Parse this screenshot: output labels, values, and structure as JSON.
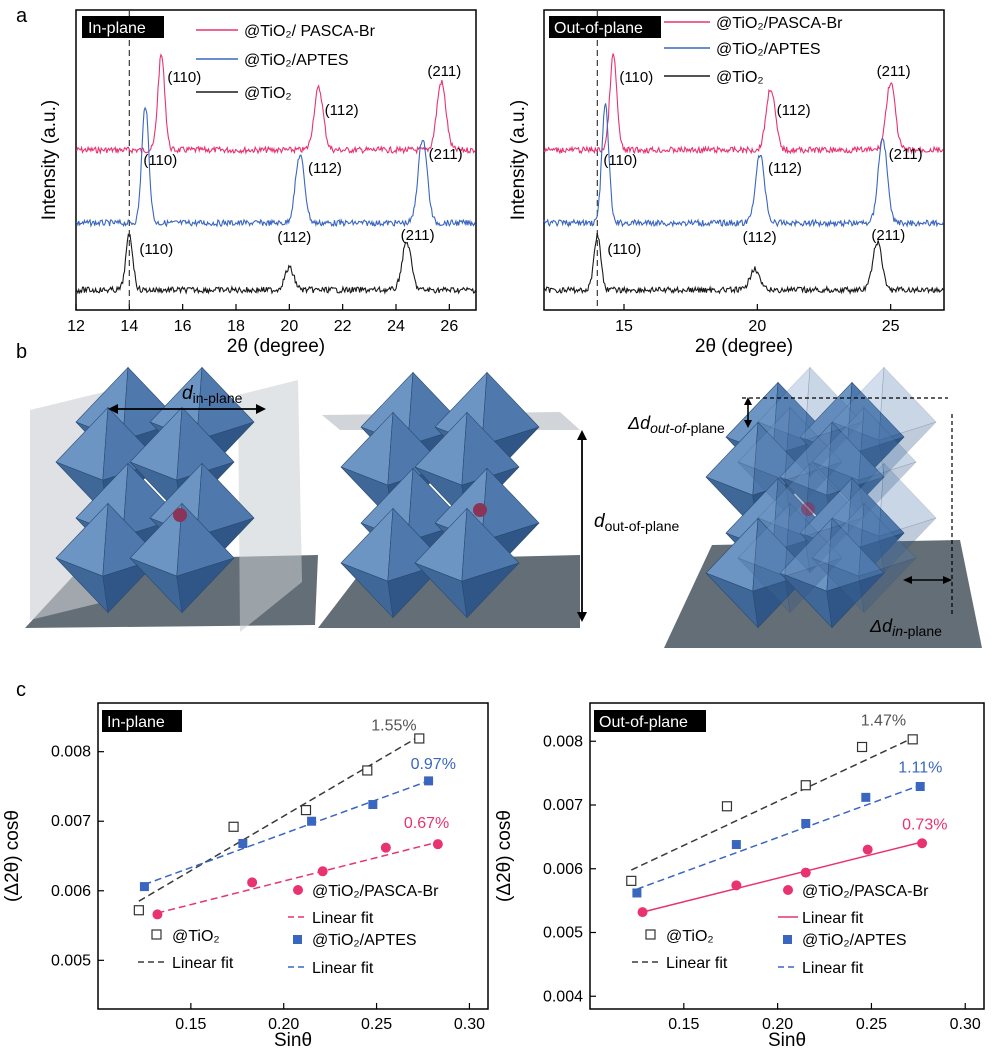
{
  "panel_labels": {
    "a": "a",
    "b": "b",
    "c": "c"
  },
  "colors": {
    "pink": "#e8336f",
    "blue": "#3a66c0",
    "black": "#1a1a1a",
    "dash_gray": "#3a3a3a",
    "octa": "#4a76a8",
    "pane": "#c9cdd2",
    "floor": "#5c6670"
  },
  "xrd_xlabel": "2θ (degree)",
  "xrd_ylabel": "Intensity (a.u.)",
  "legend_xrd": {
    "pink": "@TiO₂/ PASCA-Br",
    "blue": "@TiO₂/APTES",
    "black": "@TiO₂",
    "pink_right": "@TiO₂/PASCA-Br"
  },
  "struct_labels": {
    "d_in": "d",
    "d_in_sub": "in-plane",
    "d_out": "d",
    "d_out_sub": "out-of-plane",
    "dd_out": "Δd",
    "dd_out_sub": "out-of-",
    "dd_out_sub2": "plane",
    "dd_in": "Δd",
    "dd_in_sub": "in-",
    "dd_in_sub2": "plane"
  },
  "chart_data": [
    {
      "type": "line",
      "panel": "a-left",
      "tag": "In-plane",
      "xlabel": "2θ (degree)",
      "ylabel": "Intensity (a.u.)",
      "xlim": [
        12,
        27
      ],
      "xticks": [
        "12",
        "14",
        "16",
        "18",
        "20",
        "22",
        "24",
        "26"
      ],
      "reference_line_x": 14.0,
      "series": [
        {
          "name": "@TiO₂/ PASCA-Br",
          "color": "pink",
          "peaks": [
            {
              "x": 15.2,
              "label": "(110)"
            },
            {
              "x": 21.1,
              "label": "(112)"
            },
            {
              "x": 25.7,
              "label": "(211)"
            }
          ]
        },
        {
          "name": "@TiO₂/APTES",
          "color": "blue",
          "peaks": [
            {
              "x": 14.6,
              "label": "(110)"
            },
            {
              "x": 20.4,
              "label": "(112)"
            },
            {
              "x": 25.0,
              "label": "(211)"
            }
          ]
        },
        {
          "name": "@TiO₂",
          "color": "black",
          "peaks": [
            {
              "x": 14.0,
              "label": "(110)"
            },
            {
              "x": 20.0,
              "label": "(112)"
            },
            {
              "x": 24.4,
              "label": "(211)"
            }
          ]
        }
      ]
    },
    {
      "type": "line",
      "panel": "a-right",
      "tag": "Out-of-plane",
      "xlabel": "2θ (degree)",
      "ylabel": "Intensity (a.u.)",
      "xlim": [
        12,
        27
      ],
      "xticks": [
        "15",
        "20",
        "25"
      ],
      "reference_line_x": 14.0,
      "series": [
        {
          "name": "@TiO₂/PASCA-Br",
          "color": "pink",
          "peaks": [
            {
              "x": 14.6,
              "label": "(110)"
            },
            {
              "x": 20.5,
              "label": "(112)"
            },
            {
              "x": 25.0,
              "label": "(211)"
            }
          ]
        },
        {
          "name": "@TiO₂/APTES",
          "color": "blue",
          "peaks": [
            {
              "x": 14.3,
              "label": "(110)"
            },
            {
              "x": 20.1,
              "label": "(112)"
            },
            {
              "x": 24.7,
              "label": "(211)"
            }
          ]
        },
        {
          "name": "@TiO₂",
          "color": "black",
          "peaks": [
            {
              "x": 14.0,
              "label": "(110)"
            },
            {
              "x": 19.9,
              "label": "(112)"
            },
            {
              "x": 24.5,
              "label": "(211)"
            }
          ]
        }
      ]
    },
    {
      "type": "scatter",
      "panel": "c-left",
      "tag": "In-plane",
      "xlabel": "Sinθ",
      "ylabel": "(Δ2θ) cosθ",
      "xlim": [
        0.1,
        0.31
      ],
      "ylim": [
        0.0043,
        0.0087
      ],
      "xticks": [
        "0.15",
        "0.20",
        "0.25",
        "0.30"
      ],
      "yticks": [
        "0.005",
        "0.006",
        "0.007",
        "0.008"
      ],
      "legend": [
        "@TiO₂/PASCA-Br",
        "Linear fit",
        "@TiO₂",
        "Linear fit",
        "@TiO₂/APTES",
        "Linear fit"
      ],
      "series": [
        {
          "name": "@TiO₂",
          "marker": "open-square",
          "color": "black",
          "fit_style": "dashed",
          "strain": "1.55%",
          "points": [
            [
              0.122,
              0.00572
            ],
            [
              0.173,
              0.00692
            ],
            [
              0.212,
              0.00716
            ],
            [
              0.245,
              0.00773
            ],
            [
              0.273,
              0.00819
            ]
          ],
          "fit": [
            [
              0.122,
              0.00585
            ],
            [
              0.273,
              0.00822
            ]
          ]
        },
        {
          "name": "@TiO₂/APTES",
          "marker": "filled-square",
          "color": "blue",
          "fit_style": "dashed",
          "strain": "0.97%",
          "points": [
            [
              0.125,
              0.00606
            ],
            [
              0.178,
              0.00668
            ],
            [
              0.215,
              0.007
            ],
            [
              0.248,
              0.00724
            ],
            [
              0.278,
              0.00758
            ]
          ],
          "fit": [
            [
              0.125,
              0.00609
            ],
            [
              0.278,
              0.00758
            ]
          ]
        },
        {
          "name": "@TiO₂/PASCA-Br",
          "marker": "filled-circle",
          "color": "pink",
          "fit_style": "dashed",
          "strain": "0.67%",
          "points": [
            [
              0.132,
              0.00566
            ],
            [
              0.183,
              0.00612
            ],
            [
              0.221,
              0.00628
            ],
            [
              0.255,
              0.00662
            ],
            [
              0.283,
              0.00667
            ]
          ],
          "fit": [
            [
              0.132,
              0.00568
            ],
            [
              0.283,
              0.0067
            ]
          ]
        }
      ]
    },
    {
      "type": "scatter",
      "panel": "c-right",
      "tag": "Out-of-plane",
      "xlabel": "Sinθ",
      "ylabel": "(Δ2θ) cosθ",
      "xlim": [
        0.1,
        0.31
      ],
      "ylim": [
        0.0038,
        0.0086
      ],
      "xticks": [
        "0.15",
        "0.20",
        "0.25",
        "0.30"
      ],
      "yticks": [
        "0.004",
        "0.005",
        "0.006",
        "0.007",
        "0.008"
      ],
      "legend": [
        "@TiO₂/PASCA-Br",
        "Linear fit",
        "@TiO₂",
        "Linear fit",
        "@TiO₂/APTES",
        "Linear fit"
      ],
      "series": [
        {
          "name": "@TiO₂",
          "marker": "open-square",
          "color": "black",
          "fit_style": "dashed",
          "strain": "1.47%",
          "points": [
            [
              0.122,
              0.00581
            ],
            [
              0.173,
              0.00698
            ],
            [
              0.215,
              0.00731
            ],
            [
              0.245,
              0.00791
            ],
            [
              0.272,
              0.00803
            ]
          ],
          "fit": [
            [
              0.122,
              0.00598
            ],
            [
              0.272,
              0.00805
            ]
          ]
        },
        {
          "name": "@TiO₂/APTES",
          "marker": "filled-square",
          "color": "blue",
          "fit_style": "dashed",
          "strain": "1.11%",
          "points": [
            [
              0.125,
              0.00562
            ],
            [
              0.178,
              0.00638
            ],
            [
              0.215,
              0.00671
            ],
            [
              0.247,
              0.00712
            ],
            [
              0.276,
              0.00729
            ]
          ],
          "fit": [
            [
              0.125,
              0.00568
            ],
            [
              0.276,
              0.00731
            ]
          ]
        },
        {
          "name": "@TiO₂/PASCA-Br",
          "marker": "filled-circle",
          "color": "pink",
          "fit_style": "solid",
          "strain": "0.73%",
          "points": [
            [
              0.128,
              0.00532
            ],
            [
              0.178,
              0.00574
            ],
            [
              0.215,
              0.00594
            ],
            [
              0.248,
              0.0063
            ],
            [
              0.277,
              0.0064
            ]
          ],
          "fit": [
            [
              0.128,
              0.00532
            ],
            [
              0.277,
              0.00642
            ]
          ]
        }
      ]
    }
  ]
}
